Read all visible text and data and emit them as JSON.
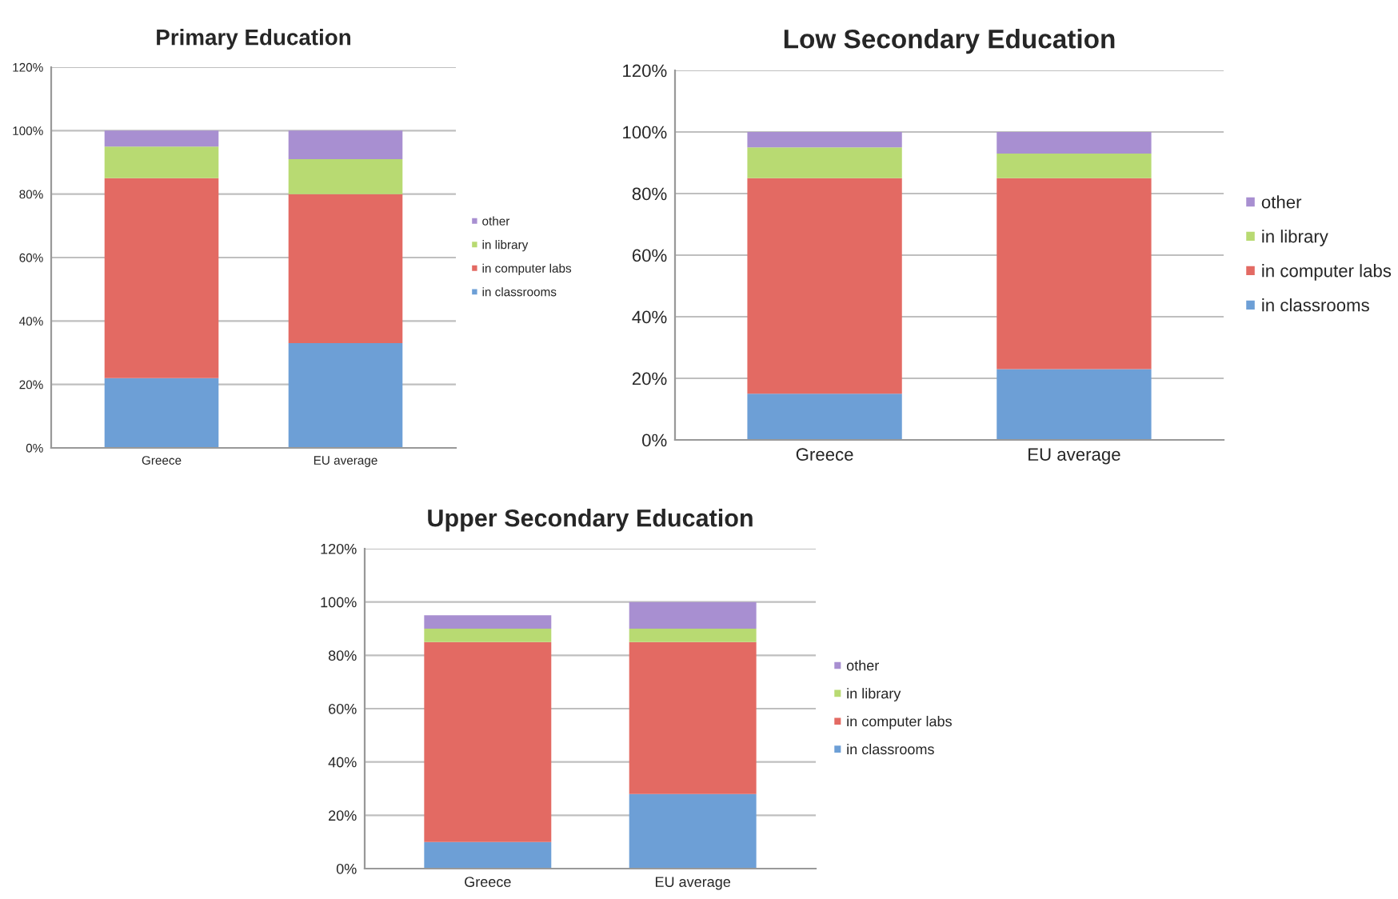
{
  "chart_data": [
    {
      "type": "bar",
      "stacked": true,
      "title": "Primary Education",
      "categories": [
        "Greece",
        "EU average"
      ],
      "ylim": [
        0,
        120
      ],
      "yticks": [
        {
          "value": 0,
          "label": "0%"
        },
        {
          "value": 20,
          "label": "20%"
        },
        {
          "value": 40,
          "label": "40%"
        },
        {
          "value": 60,
          "label": "60%"
        },
        {
          "value": 80,
          "label": "80%"
        },
        {
          "value": 100,
          "label": "100%"
        },
        {
          "value": 120,
          "label": "120%"
        }
      ],
      "grid": "y",
      "legend": "right",
      "series": [
        {
          "name": "in classrooms",
          "color": "#6d9fd6",
          "values": [
            22,
            33
          ]
        },
        {
          "name": "in computer labs",
          "color": "#e36a63",
          "values": [
            63,
            47
          ]
        },
        {
          "name": "in library",
          "color": "#b8da72",
          "values": [
            10,
            11
          ]
        },
        {
          "name": "other",
          "color": "#a88fd1",
          "values": [
            5,
            9
          ]
        }
      ]
    },
    {
      "type": "bar",
      "stacked": true,
      "title": "Low Secondary Education",
      "categories": [
        "Greece",
        "EU average"
      ],
      "ylim": [
        0,
        120
      ],
      "yticks": [
        {
          "value": 0,
          "label": "0%"
        },
        {
          "value": 20,
          "label": "20%"
        },
        {
          "value": 40,
          "label": "40%"
        },
        {
          "value": 60,
          "label": "60%"
        },
        {
          "value": 80,
          "label": "80%"
        },
        {
          "value": 100,
          "label": "100%"
        },
        {
          "value": 120,
          "label": "120%"
        }
      ],
      "grid": "y",
      "legend": "right",
      "series": [
        {
          "name": "in classrooms",
          "color": "#6d9fd6",
          "values": [
            15,
            23
          ]
        },
        {
          "name": "in computer labs",
          "color": "#e36a63",
          "values": [
            70,
            62
          ]
        },
        {
          "name": "in library",
          "color": "#b8da72",
          "values": [
            10,
            8
          ]
        },
        {
          "name": "other",
          "color": "#a88fd1",
          "values": [
            5,
            7
          ]
        }
      ]
    },
    {
      "type": "bar",
      "stacked": true,
      "title": "Upper Secondary Education",
      "categories": [
        "Greece",
        "EU average"
      ],
      "ylim": [
        0,
        120
      ],
      "yticks": [
        {
          "value": 0,
          "label": "0%"
        },
        {
          "value": 20,
          "label": "20%"
        },
        {
          "value": 40,
          "label": "40%"
        },
        {
          "value": 60,
          "label": "60%"
        },
        {
          "value": 80,
          "label": "80%"
        },
        {
          "value": 100,
          "label": "100%"
        },
        {
          "value": 120,
          "label": "120%"
        }
      ],
      "grid": "y",
      "legend": "right",
      "series": [
        {
          "name": "in classrooms",
          "color": "#6d9fd6",
          "values": [
            10,
            28
          ]
        },
        {
          "name": "in computer labs",
          "color": "#e36a63",
          "values": [
            75,
            57
          ]
        },
        {
          "name": "in library",
          "color": "#b8da72",
          "values": [
            5,
            5
          ]
        },
        {
          "name": "other",
          "color": "#a88fd1",
          "values": [
            5,
            10
          ]
        }
      ]
    }
  ]
}
